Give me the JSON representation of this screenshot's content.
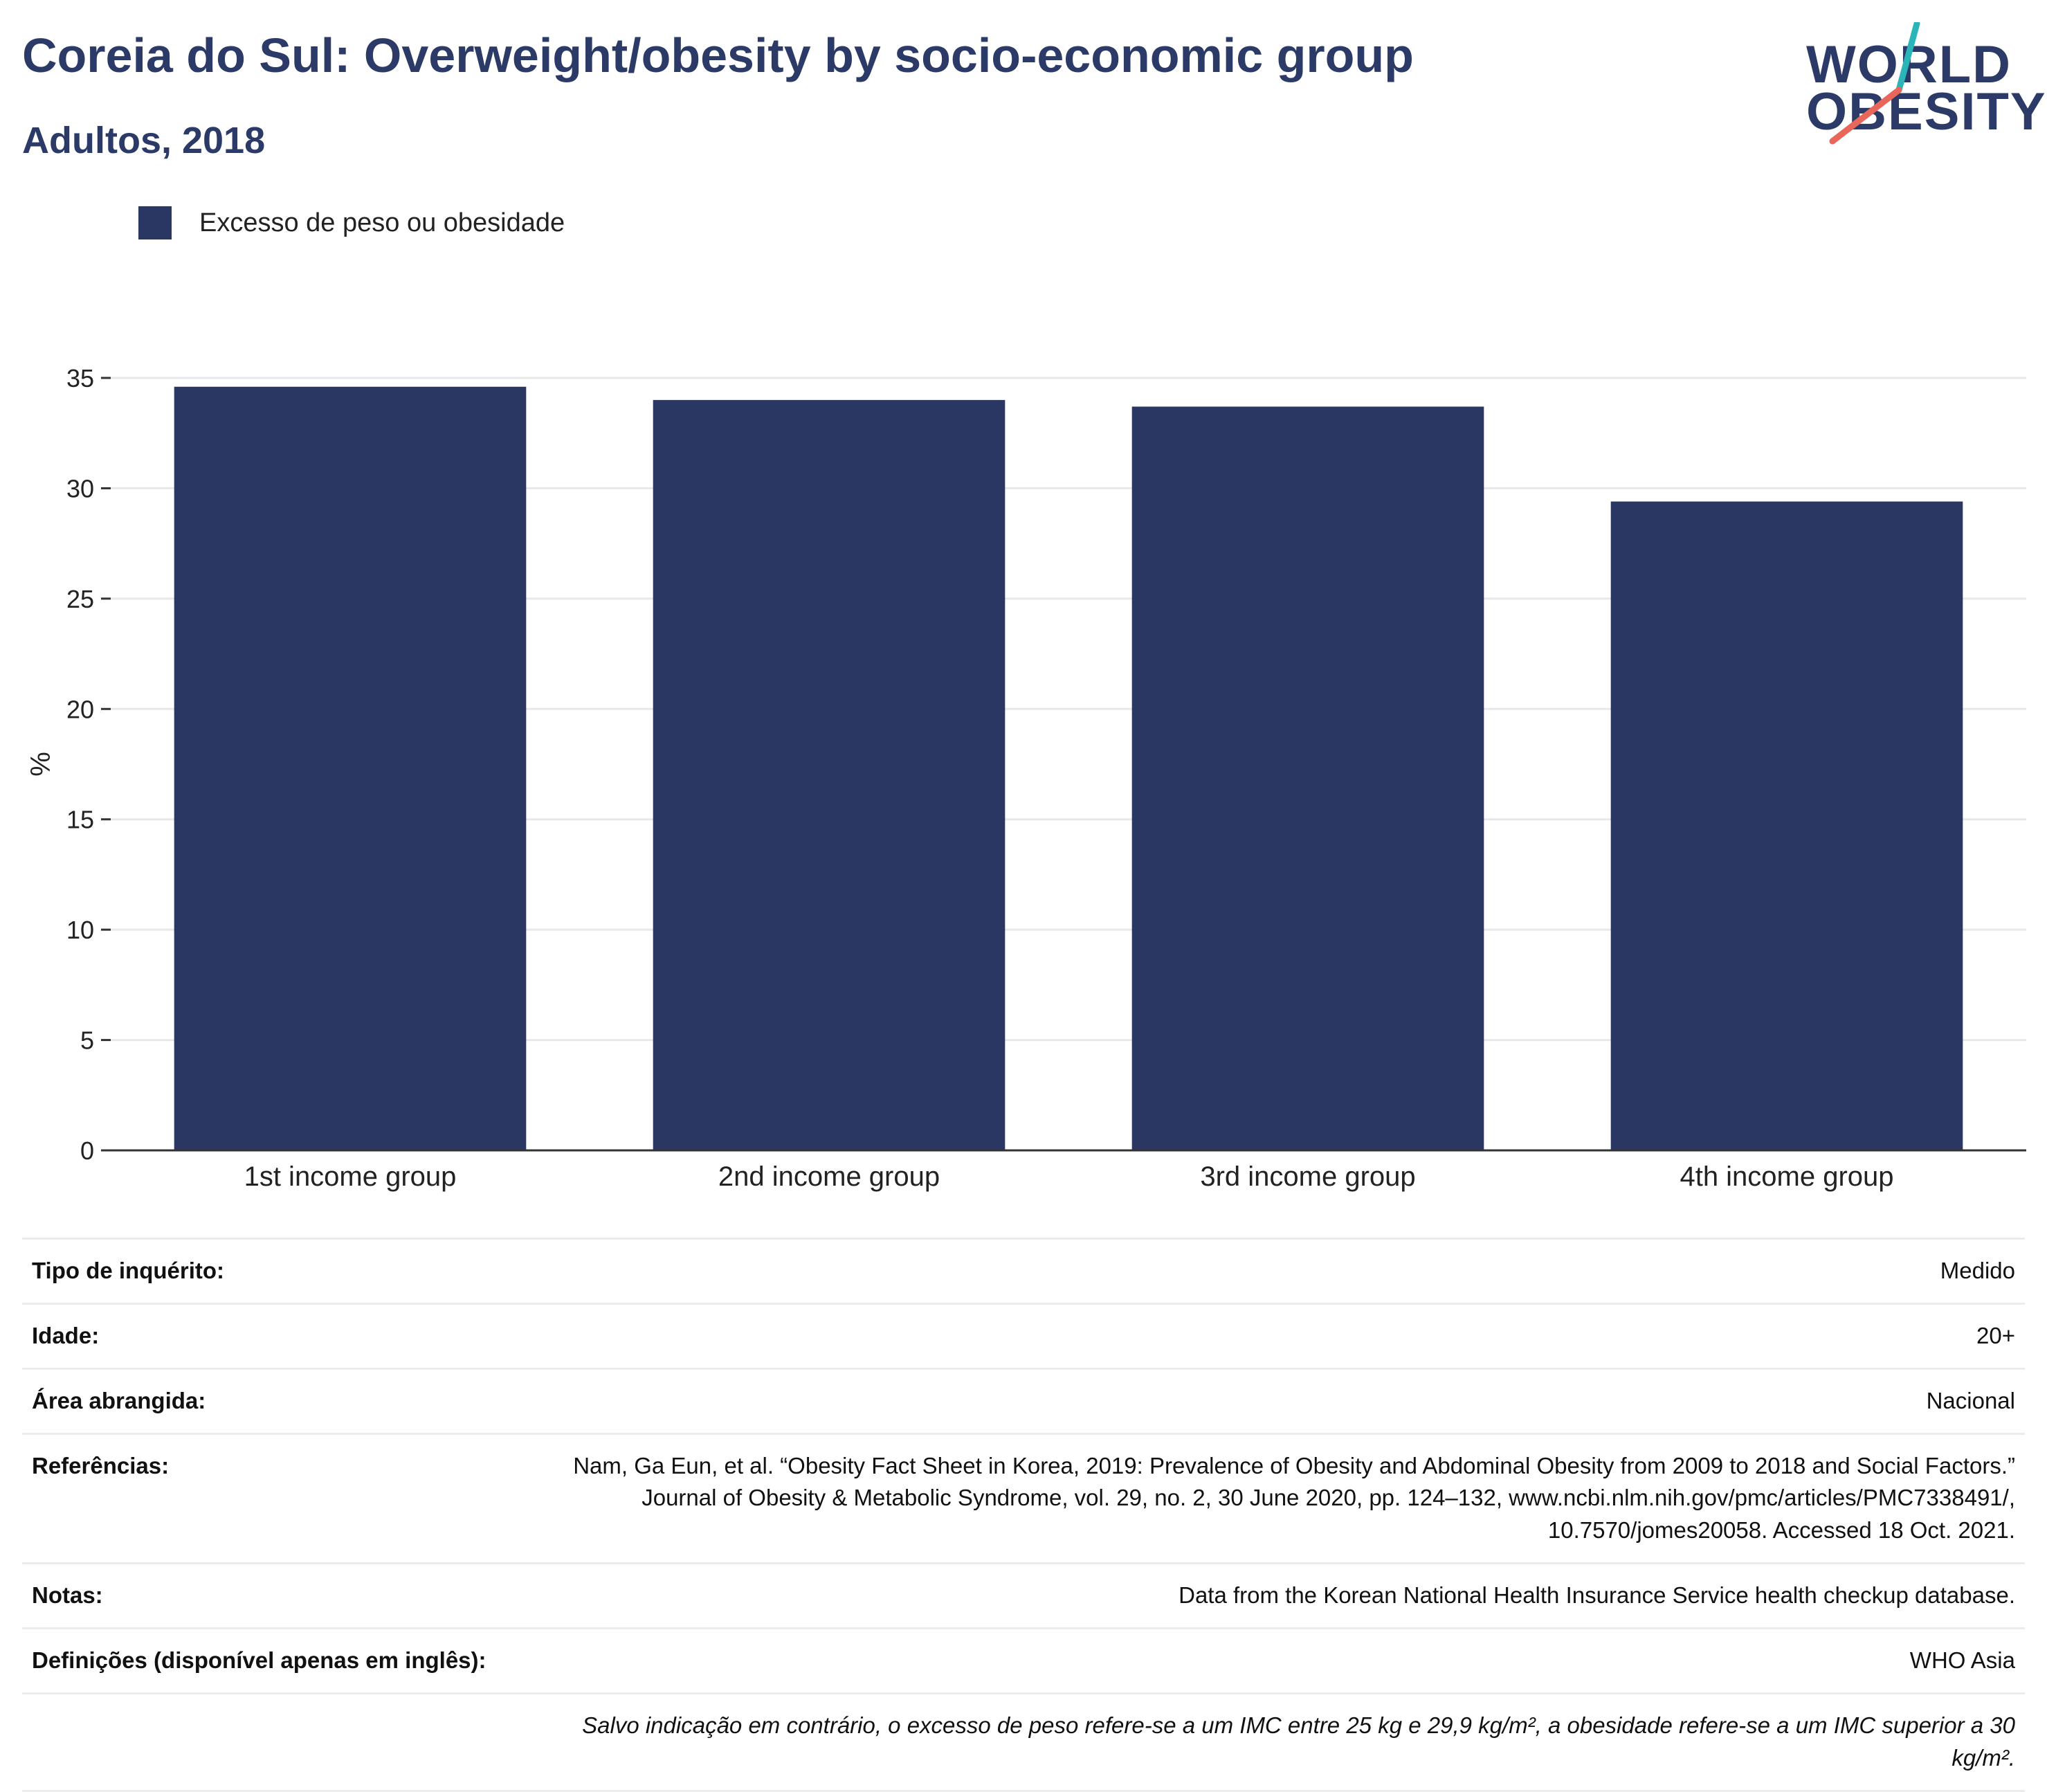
{
  "header": {
    "title": "Coreia do Sul: Overweight/obesity by socio-economic group",
    "subtitle": "Adultos, 2018"
  },
  "logo": {
    "line1": "WORLD",
    "line2": "OBESITY",
    "slash_colors": [
      "#2bb5b8",
      "#e8675a"
    ]
  },
  "legend": {
    "label": "Excesso de peso ou obesidade",
    "color": "#2b3763"
  },
  "chart_data": {
    "type": "bar",
    "categories": [
      "1st income group",
      "2nd income group",
      "3rd income group",
      "4th income group"
    ],
    "series": [
      {
        "name": "Excesso de peso ou obesidade",
        "values": [
          34.6,
          34.0,
          33.7,
          29.4
        ],
        "color": "#2b3763"
      }
    ],
    "ylabel": "%",
    "ylim": [
      0,
      35
    ],
    "yticks": [
      0,
      5,
      10,
      15,
      20,
      25,
      30,
      35
    ],
    "grid": true,
    "legend_position": "top-left"
  },
  "meta": {
    "rows": [
      {
        "key": "Tipo de inquérito:",
        "value": "Medido"
      },
      {
        "key": "Idade:",
        "value": "20+"
      },
      {
        "key": "Área abrangida:",
        "value": "Nacional"
      },
      {
        "key": "Referências:",
        "value": "Nam, Ga Eun, et al. “Obesity Fact Sheet in Korea, 2019: Prevalence of Obesity and Abdominal Obesity from 2009 to 2018 and Social Factors.” Journal of Obesity & Metabolic Syndrome, vol. 29, no. 2, 30 June 2020, pp. 124–132, www.ncbi.nlm.nih.gov/pmc/articles/PMC7338491/, 10.7570/jomes20058. Accessed 18 Oct. 2021."
      },
      {
        "key": "Notas:",
        "value": "Data from the Korean National Health Insurance Service health checkup database."
      },
      {
        "key": "Definições (disponível apenas em inglês):",
        "value": "WHO Asia"
      }
    ],
    "footnote": "Salvo indicação em contrário, o excesso de peso refere-se a um IMC entre 25 kg e 29,9 kg/m², a obesidade refere-se a um IMC superior a 30 kg/m²."
  }
}
